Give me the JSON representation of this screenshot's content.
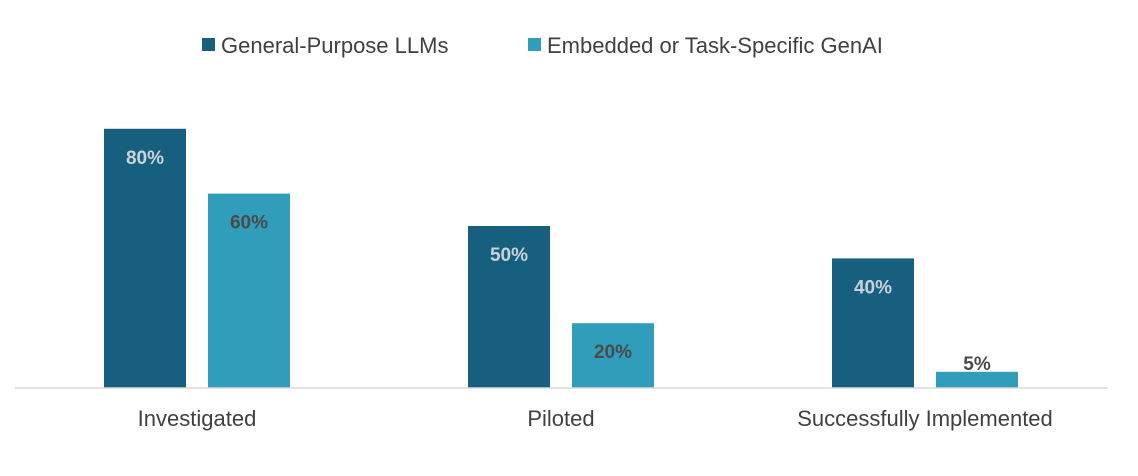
{
  "chart_data": {
    "type": "bar",
    "categories": [
      "Investigated",
      "Piloted",
      "Successfully Implemented"
    ],
    "series": [
      {
        "name": "General-Purpose LLMs",
        "values": [
          80,
          50,
          40
        ],
        "color": "#175F7F",
        "label_color": "#C9D2D8"
      },
      {
        "name": "Embedded or Task-Specific GenAI",
        "values": [
          60,
          20,
          5
        ],
        "color": "#309EBA",
        "label_color": "#4A4A4A"
      }
    ],
    "data_labels": [
      [
        "80%",
        "50%",
        "40%"
      ],
      [
        "60%",
        "20%",
        "5%"
      ]
    ],
    "title": "",
    "xlabel": "",
    "ylabel": "",
    "ylim": [
      0,
      100
    ],
    "grid": false,
    "legend_position": "top-center",
    "axis_color": "#D9D9D9"
  }
}
